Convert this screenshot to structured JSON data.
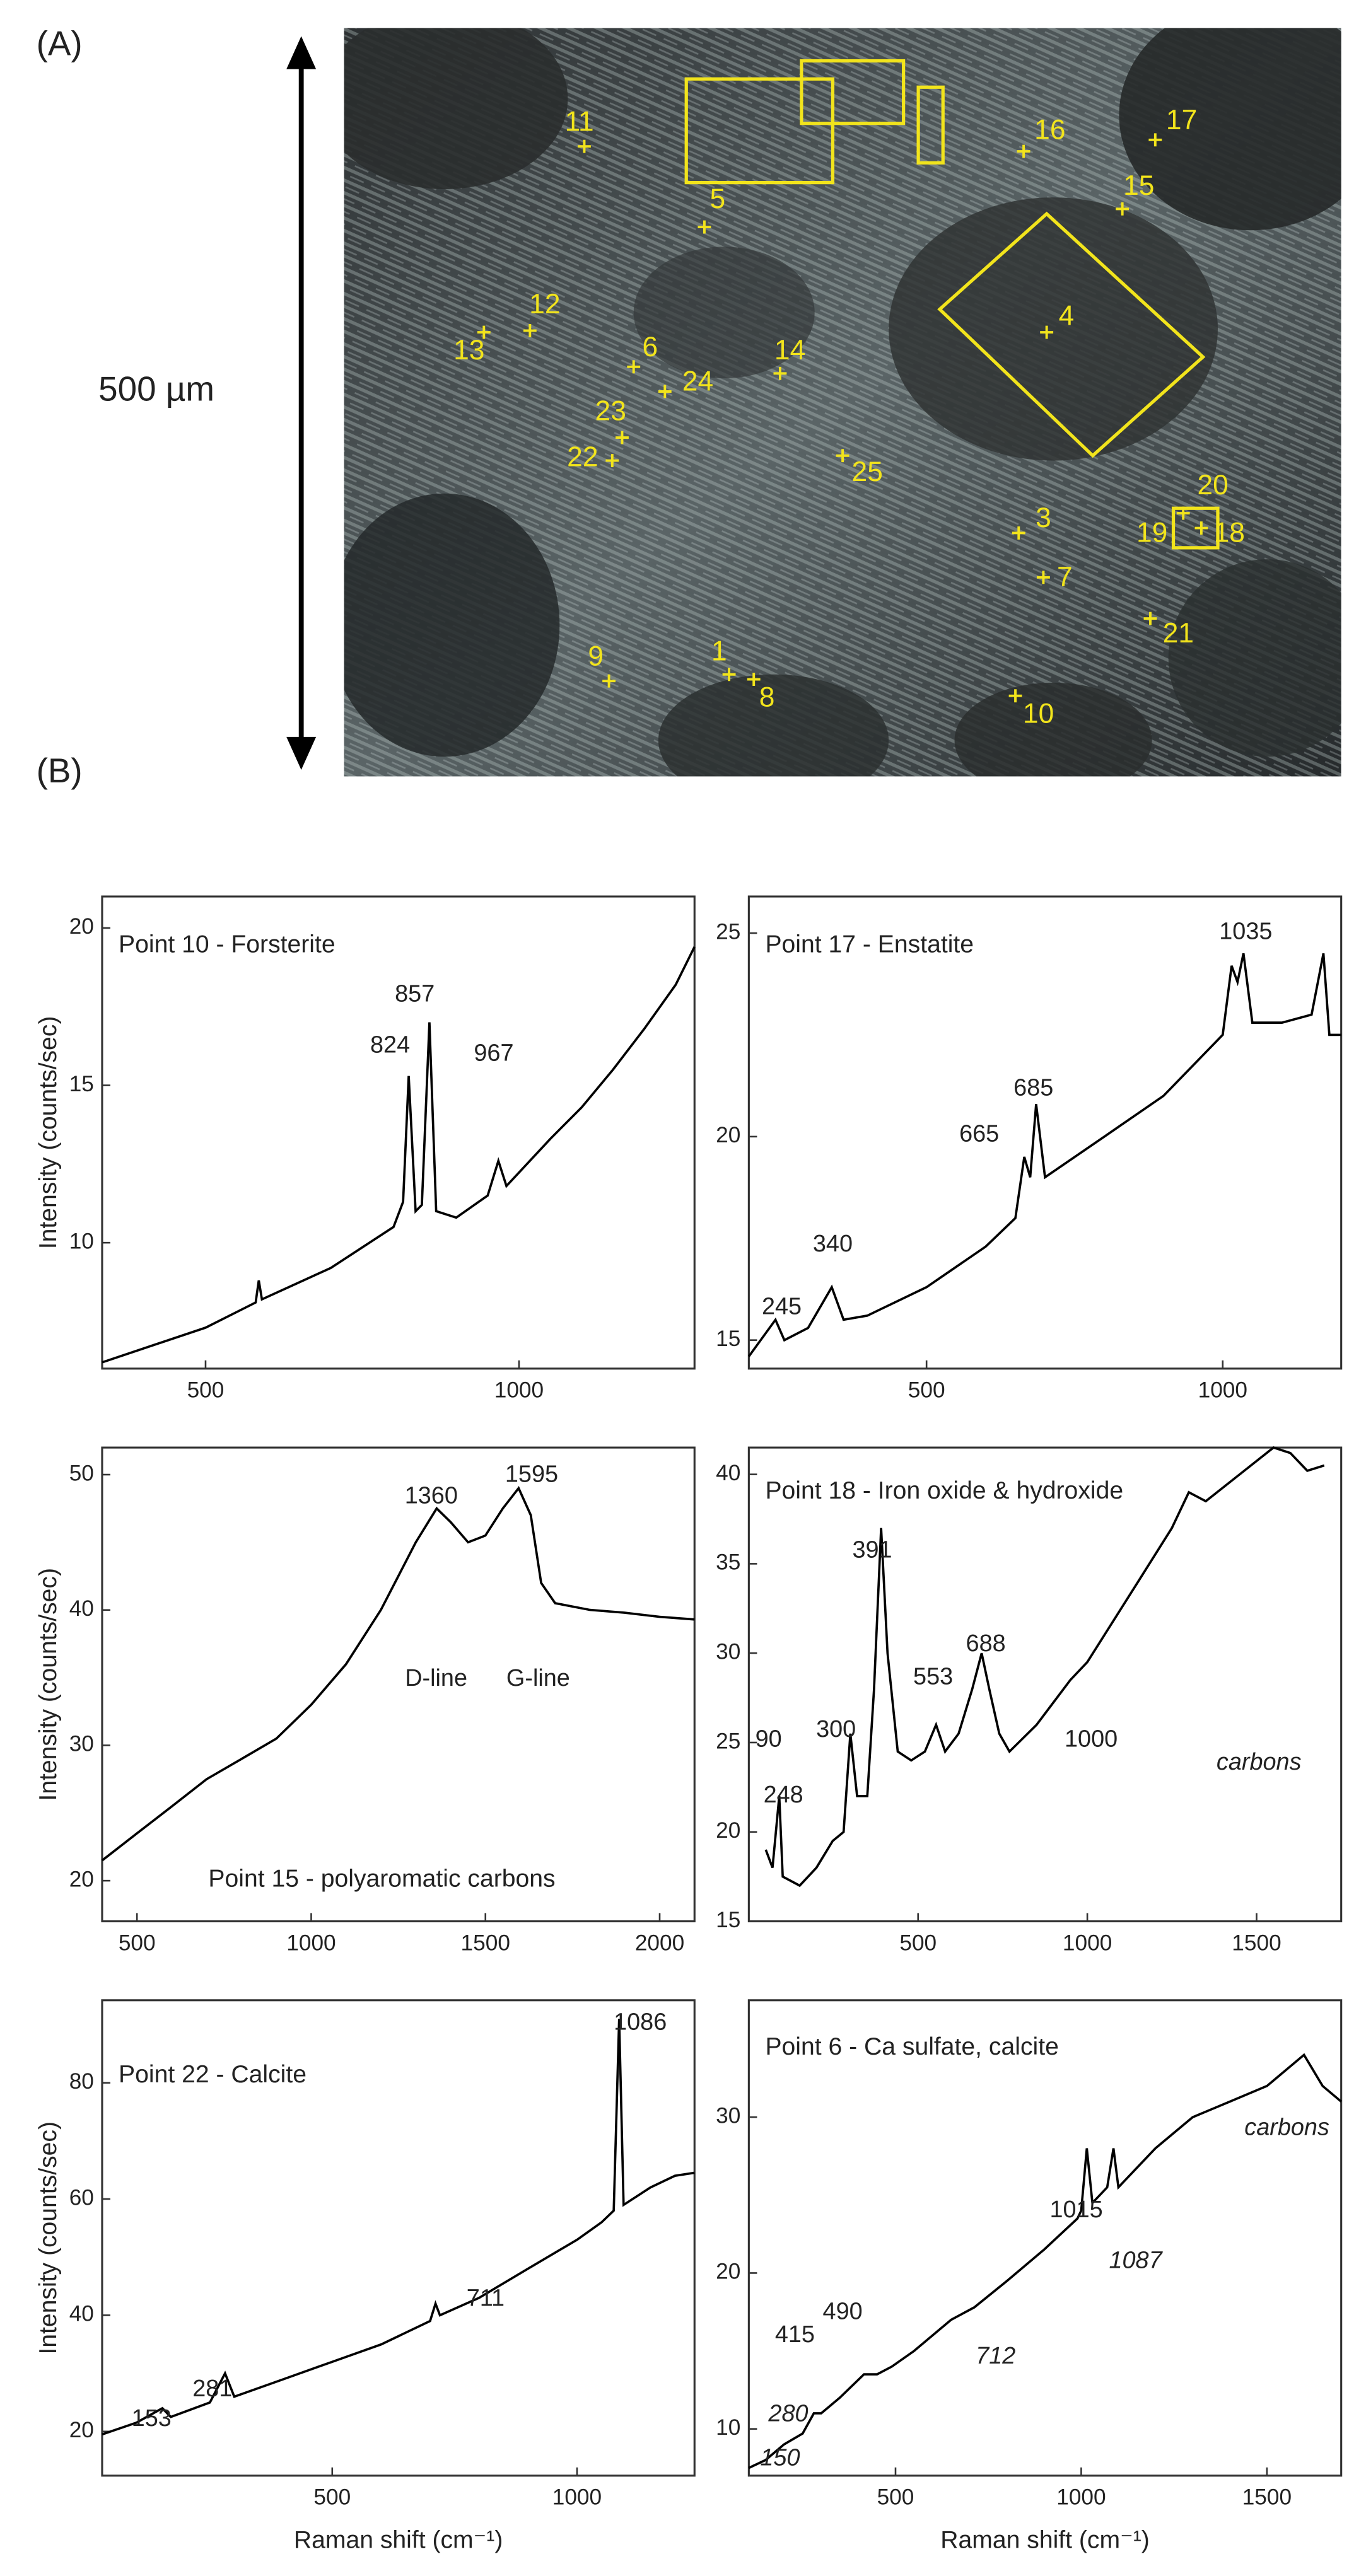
{
  "figure": {
    "label_a": "(A)",
    "label_b": "(B)",
    "scale_label": "500 µm",
    "points": [
      "11",
      "5",
      "16",
      "17",
      "15",
      "4",
      "12",
      "13",
      "6",
      "24",
      "14",
      "23",
      "22",
      "25",
      "3",
      "7",
      "20",
      "19",
      "18",
      "21",
      "9",
      "1",
      "8",
      "10"
    ]
  },
  "chart_data": [
    {
      "type": "line",
      "title": "Point 10 - Forsterite",
      "y_label": "Intensity (counts/sec)",
      "x": [
        335,
        500,
        580,
        585,
        590,
        700,
        800,
        815,
        824,
        835,
        845,
        857,
        868,
        900,
        950,
        967,
        980,
        1050,
        1100,
        1150,
        1200,
        1250,
        1280
      ],
      "values": [
        6.2,
        7.3,
        8.1,
        8.8,
        8.2,
        9.2,
        10.5,
        11.3,
        15.3,
        11.0,
        11.2,
        17.0,
        11.0,
        10.8,
        11.5,
        12.6,
        11.8,
        13.3,
        14.3,
        15.5,
        16.8,
        18.2,
        19.4
      ],
      "color": "#000000",
      "xlim": [
        335,
        1280
      ],
      "ylim": [
        6,
        21
      ],
      "xticks": [
        500,
        1000
      ],
      "yticks": [
        10,
        15,
        20
      ],
      "annotations": [
        "824",
        "857",
        "967"
      ]
    },
    {
      "type": "line",
      "title": "Point 17 - Enstatite",
      "x": [
        200,
        245,
        260,
        300,
        340,
        360,
        400,
        500,
        600,
        650,
        665,
        675,
        685,
        700,
        800,
        900,
        1000,
        1015,
        1025,
        1035,
        1050,
        1100,
        1150,
        1170,
        1180,
        1200
      ],
      "values": [
        14.6,
        15.5,
        15.0,
        15.3,
        16.3,
        15.5,
        15.6,
        16.3,
        17.3,
        18.0,
        19.5,
        19.0,
        20.8,
        19.0,
        20.0,
        21.0,
        22.5,
        24.2,
        23.8,
        24.5,
        22.8,
        22.8,
        23.0,
        24.5,
        22.5,
        22.5
      ],
      "color": "#000000",
      "xlim": [
        200,
        1200
      ],
      "ylim": [
        14.3,
        25.9
      ],
      "xticks": [
        500,
        1000
      ],
      "yticks": [
        15,
        20,
        25
      ],
      "annotations": [
        "1035",
        "685",
        "665",
        "340",
        "245"
      ]
    },
    {
      "type": "line",
      "title": "Point 15 - polyaromatic carbons",
      "y_label": "Intensity (counts/sec)",
      "x": [
        400,
        500,
        600,
        700,
        800,
        900,
        1000,
        1100,
        1200,
        1300,
        1360,
        1400,
        1450,
        1500,
        1550,
        1595,
        1630,
        1660,
        1700,
        1800,
        1900,
        2000,
        2100
      ],
      "values": [
        21.5,
        23.5,
        25.5,
        27.5,
        29.0,
        30.5,
        33.0,
        36.0,
        40.0,
        45.0,
        47.5,
        46.5,
        45.0,
        45.5,
        47.5,
        49.0,
        47.0,
        42.0,
        40.5,
        40.0,
        39.8,
        39.5,
        39.3
      ],
      "color": "#000000",
      "xlim": [
        400,
        2100
      ],
      "ylim": [
        17,
        52
      ],
      "xticks": [
        500,
        1000,
        1500,
        2000
      ],
      "yticks": [
        20,
        30,
        40,
        50
      ],
      "annotations": [
        "1360",
        "1595",
        "D-line",
        "G-line"
      ]
    },
    {
      "type": "line",
      "title": "Point 18 - Iron oxide & hydroxide",
      "x": [
        50,
        70,
        90,
        100,
        150,
        200,
        248,
        280,
        300,
        320,
        350,
        370,
        391,
        410,
        440,
        480,
        520,
        553,
        580,
        620,
        660,
        688,
        710,
        740,
        770,
        850,
        950,
        1000,
        1050,
        1150,
        1250,
        1300,
        1350,
        1450,
        1550,
        1600,
        1650,
        1700
      ],
      "values": [
        19,
        18,
        22,
        17.5,
        17,
        18,
        19.5,
        20,
        25.5,
        22,
        22,
        28,
        37,
        30,
        24.5,
        24,
        24.5,
        26,
        24.5,
        25.5,
        28,
        30,
        28,
        25.5,
        24.5,
        26,
        28.5,
        29.5,
        31,
        34,
        37,
        39,
        38.5,
        40,
        41.5,
        41.2,
        40.2,
        40.5
      ],
      "color": "#000000",
      "xlim": [
        0,
        1750
      ],
      "ylim": [
        15,
        41.5
      ],
      "xticks": [
        500,
        1000,
        1500
      ],
      "yticks": [
        15,
        20,
        25,
        30,
        35,
        40
      ],
      "annotations": [
        "391",
        "300",
        "553",
        "688",
        "1000",
        "248",
        "90",
        "carbons"
      ]
    },
    {
      "type": "line",
      "title": "Point 22 - Calcite",
      "y_label": "Intensity (counts/sec)",
      "x_label": "Raman shift (cm⁻¹)",
      "x": [
        30,
        100,
        153,
        170,
        250,
        281,
        300,
        400,
        500,
        600,
        700,
        711,
        720,
        800,
        900,
        1000,
        1050,
        1075,
        1086,
        1095,
        1150,
        1200,
        1240
      ],
      "values": [
        19.5,
        21.5,
        24,
        22.5,
        25,
        30,
        26,
        29,
        32,
        35,
        39,
        42,
        40,
        43,
        48,
        53,
        56,
        58,
        91,
        59,
        62,
        64,
        64.5
      ],
      "color": "#000000",
      "xlim": [
        30,
        1240
      ],
      "ylim": [
        12.4,
        94.2
      ],
      "xticks": [
        500,
        1000
      ],
      "yticks": [
        20,
        40,
        60,
        80
      ],
      "annotations": [
        "1086",
        "711",
        "281",
        "153"
      ]
    },
    {
      "type": "line",
      "title": "Point 6 - Ca sulfate, calcite",
      "x_label": "Raman shift (cm⁻¹)",
      "x": [
        105,
        150,
        200,
        250,
        280,
        300,
        350,
        415,
        450,
        490,
        550,
        600,
        650,
        712,
        800,
        900,
        990,
        1000,
        1015,
        1030,
        1070,
        1087,
        1100,
        1200,
        1300,
        1400,
        1500,
        1600,
        1650,
        1700
      ],
      "values": [
        7.5,
        8,
        9,
        9.7,
        11,
        11,
        12,
        13.5,
        13.5,
        14,
        15,
        16,
        17,
        17.8,
        19.5,
        21.5,
        23.5,
        24,
        28,
        24.5,
        25.5,
        28,
        25.5,
        28,
        30,
        31,
        32,
        34,
        32,
        31
      ],
      "color": "#000000",
      "xlim": [
        105,
        1700
      ],
      "ylim": [
        7,
        37.5
      ],
      "xticks": [
        500,
        1000,
        1500
      ],
      "yticks": [
        10,
        20,
        30
      ],
      "annotations": [
        "1015",
        "1087",
        "490",
        "415",
        "712",
        "280",
        "150",
        "carbons"
      ]
    }
  ]
}
